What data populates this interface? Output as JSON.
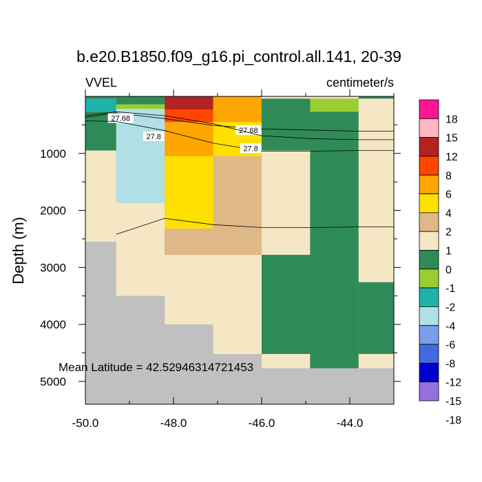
{
  "chart_data": {
    "type": "heatmap",
    "title": "b.e20.B1850.f09_g16.pi_control.all.141, 20-39",
    "left_label": "VVEL",
    "right_label": "centimeter/s",
    "ylabel": "Depth (m)",
    "xlabel": "",
    "annotation": "Mean Latitude = 42.52946314721453",
    "xlim": [
      -50.0,
      -43.0
    ],
    "ylim": [
      5400,
      0
    ],
    "x_ticks": [
      -50.0,
      -48.0,
      -46.0,
      -44.0
    ],
    "x_tick_labels": [
      "-50.0",
      "-48.0",
      "-46.0",
      "-44.0"
    ],
    "y_ticks": [
      1000,
      2000,
      3000,
      4000,
      5000
    ],
    "y_tick_labels": [
      "1000",
      "2000",
      "3000",
      "4000",
      "5000"
    ],
    "colorbar": {
      "labels": [
        "18",
        "15",
        "12",
        "8",
        "6",
        "4",
        "2",
        "1",
        "0",
        "-1",
        "-2",
        "-4",
        "-6",
        "-8",
        "-12",
        "-15",
        "-18"
      ],
      "colors": [
        "#ff1493",
        "#ffb6c1",
        "#b22222",
        "#ff4500",
        "#ffa500",
        "#ffe000",
        "#deb887",
        "#f5e6c4",
        "#2e8b57",
        "#9acd32",
        "#20b2aa",
        "#b0e0e6",
        "#7b9ee8",
        "#4169e1",
        "#0000cd",
        "#9370db"
      ]
    },
    "land_color": "#c0c0c0",
    "cells": [
      {
        "x0": -50.0,
        "x1": -49.3,
        "d0": 0,
        "d1": 40,
        "value": "0",
        "color": "#2e8b57"
      },
      {
        "x0": -50.0,
        "x1": -49.3,
        "d0": 40,
        "d1": 270,
        "value": "-4",
        "color": "#20b2aa"
      },
      {
        "x0": -50.0,
        "x1": -49.3,
        "d0": 270,
        "d1": 950,
        "value": "-1",
        "color": "#2e8b57"
      },
      {
        "x0": -50.0,
        "x1": -49.3,
        "d0": 950,
        "d1": 2550,
        "value": "0",
        "color": "#f5e6c4"
      },
      {
        "x0": -49.3,
        "x1": -48.2,
        "d0": 0,
        "d1": 140,
        "value": "-1",
        "color": "#2e8b57"
      },
      {
        "x0": -49.3,
        "x1": -48.2,
        "d0": 140,
        "d1": 220,
        "value": "-2",
        "color": "#9acd32"
      },
      {
        "x0": -49.3,
        "x1": -48.2,
        "d0": 220,
        "d1": 1870,
        "value": "-6",
        "color": "#b0e0e6"
      },
      {
        "x0": -49.3,
        "x1": -48.2,
        "d0": 1870,
        "d1": 3500,
        "value": "0",
        "color": "#f5e6c4"
      },
      {
        "x0": -48.2,
        "x1": -47.1,
        "d0": 0,
        "d1": 230,
        "value": "12",
        "color": "#b22222"
      },
      {
        "x0": -48.2,
        "x1": -47.1,
        "d0": 230,
        "d1": 450,
        "value": "8",
        "color": "#ff4500"
      },
      {
        "x0": -48.2,
        "x1": -47.1,
        "d0": 450,
        "d1": 1050,
        "value": "6",
        "color": "#ffa500"
      },
      {
        "x0": -48.2,
        "x1": -47.1,
        "d0": 1050,
        "d1": 2320,
        "value": "4",
        "color": "#ffe000"
      },
      {
        "x0": -48.2,
        "x1": -47.1,
        "d0": 2320,
        "d1": 2780,
        "value": "2",
        "color": "#deb887"
      },
      {
        "x0": -48.2,
        "x1": -47.1,
        "d0": 2780,
        "d1": 4000,
        "value": "0",
        "color": "#f5e6c4"
      },
      {
        "x0": -47.1,
        "x1": -46.0,
        "d0": 0,
        "d1": 450,
        "value": "6",
        "color": "#ffa500"
      },
      {
        "x0": -47.1,
        "x1": -46.0,
        "d0": 450,
        "d1": 1050,
        "value": "4",
        "color": "#ffe000"
      },
      {
        "x0": -47.1,
        "x1": -46.0,
        "d0": 1050,
        "d1": 2780,
        "value": "2",
        "color": "#deb887"
      },
      {
        "x0": -47.1,
        "x1": -46.0,
        "d0": 2780,
        "d1": 4520,
        "value": "0",
        "color": "#f5e6c4"
      },
      {
        "x0": -46.0,
        "x1": -44.9,
        "d0": 0,
        "d1": 40,
        "value": "0",
        "color": "#f5e6c4"
      },
      {
        "x0": -46.0,
        "x1": -44.9,
        "d0": 40,
        "d1": 950,
        "value": "-1",
        "color": "#2e8b57"
      },
      {
        "x0": -46.0,
        "x1": -44.9,
        "d0": 950,
        "d1": 2780,
        "value": "0",
        "color": "#f5e6c4"
      },
      {
        "x0": -46.0,
        "x1": -44.9,
        "d0": 2780,
        "d1": 4520,
        "value": "-1",
        "color": "#2e8b57"
      },
      {
        "x0": -46.0,
        "x1": -44.9,
        "d0": 4520,
        "d1": 4770,
        "value": "0",
        "color": "#f5e6c4"
      },
      {
        "x0": -44.9,
        "x1": -43.8,
        "d0": 0,
        "d1": 40,
        "value": "0",
        "color": "#f5e6c4"
      },
      {
        "x0": -44.9,
        "x1": -43.8,
        "d0": 40,
        "d1": 270,
        "value": "-2",
        "color": "#9acd32"
      },
      {
        "x0": -44.9,
        "x1": -43.8,
        "d0": 270,
        "d1": 4770,
        "value": "-1",
        "color": "#2e8b57"
      },
      {
        "x0": -43.8,
        "x1": -43.0,
        "d0": 0,
        "d1": 40,
        "value": "-1",
        "color": "#2e8b57"
      },
      {
        "x0": -43.8,
        "x1": -43.0,
        "d0": 40,
        "d1": 3260,
        "value": "0",
        "color": "#f5e6c4"
      },
      {
        "x0": -43.8,
        "x1": -43.0,
        "d0": 3260,
        "d1": 4520,
        "value": "-1",
        "color": "#2e8b57"
      },
      {
        "x0": -43.8,
        "x1": -43.0,
        "d0": 4520,
        "d1": 4770,
        "value": "0",
        "color": "#f5e6c4"
      }
    ],
    "contours": [
      {
        "label": "27.68",
        "points": [
          [
            -50.0,
            370
          ],
          [
            -49.3,
            290
          ],
          [
            -48.2,
            390
          ],
          [
            -47.1,
            510
          ],
          [
            -46.0,
            570
          ],
          [
            -44.9,
            590
          ],
          [
            -43.8,
            610
          ],
          [
            -43.0,
            610
          ]
        ],
        "label_at": [
          [
            -49.2,
            380
          ],
          [
            -46.3,
            590
          ]
        ]
      },
      {
        "label": "27.8",
        "points": [
          [
            -50.0,
            430
          ],
          [
            -49.3,
            440
          ],
          [
            -48.2,
            600
          ],
          [
            -47.1,
            820
          ],
          [
            -46.0,
            960
          ],
          [
            -44.9,
            960
          ],
          [
            -43.8,
            950
          ],
          [
            -43.0,
            950
          ]
        ],
        "label_at": [
          [
            -48.45,
            700
          ],
          [
            -46.25,
            910
          ]
        ]
      },
      {
        "label": "",
        "points": [
          [
            -50.0,
            340
          ],
          [
            -49.3,
            270
          ],
          [
            -48.2,
            340
          ],
          [
            -47.1,
            480
          ],
          [
            -46.0,
            690
          ],
          [
            -44.9,
            740
          ],
          [
            -43.8,
            760
          ],
          [
            -43.0,
            760
          ]
        ],
        "label_at": []
      },
      {
        "label": "",
        "points": [
          [
            -49.3,
            2420
          ],
          [
            -48.2,
            2140
          ],
          [
            -47.1,
            2250
          ],
          [
            -46.0,
            2300
          ],
          [
            -44.9,
            2300
          ],
          [
            -43.8,
            2290
          ],
          [
            -43.0,
            2290
          ]
        ],
        "label_at": []
      }
    ]
  }
}
